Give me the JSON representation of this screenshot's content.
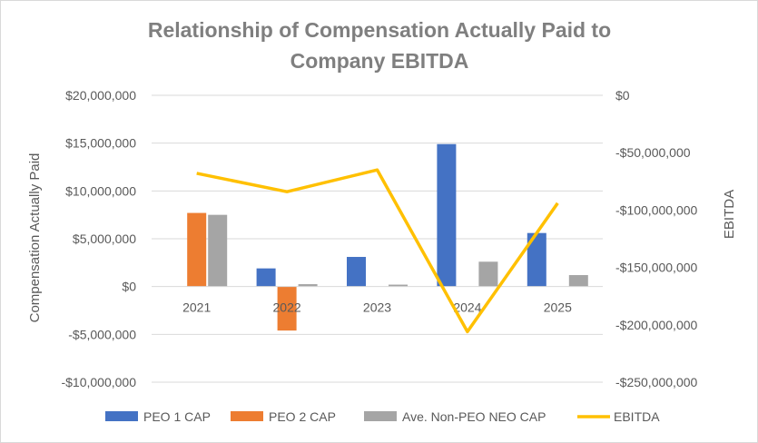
{
  "chart_data": {
    "type": "bar",
    "title_lines": [
      "Relationship of Compensation Actually Paid to",
      "Company EBITDA"
    ],
    "categories": [
      "2021",
      "2022",
      "2023",
      "2024",
      "2025"
    ],
    "ylabel_left": "Compensation Actually Paid",
    "ylabel_right": "EBITDA",
    "ylim_left": [
      -10000000,
      20000000
    ],
    "ylim_right": [
      -250000000,
      0
    ],
    "left_ticks": [
      {
        "value": 20000000,
        "label": "$20,000,000"
      },
      {
        "value": 15000000,
        "label": "$15,000,000"
      },
      {
        "value": 10000000,
        "label": "$10,000,000"
      },
      {
        "value": 5000000,
        "label": "$5,000,000"
      },
      {
        "value": 0,
        "label": "$0"
      },
      {
        "value": -5000000,
        "label": "-$5,000,000"
      },
      {
        "value": -10000000,
        "label": "-$10,000,000"
      }
    ],
    "right_ticks": [
      {
        "value": 0,
        "label": "$0"
      },
      {
        "value": -50000000,
        "label": "-$50,000,000"
      },
      {
        "value": -100000000,
        "label": "-$100,000,000"
      },
      {
        "value": -150000000,
        "label": "-$150,000,000"
      },
      {
        "value": -200000000,
        "label": "-$200,000,000"
      },
      {
        "value": -250000000,
        "label": "-$250,000,000"
      }
    ],
    "bar_series": [
      {
        "name": "PEO 1 CAP",
        "color": "#4472c4",
        "values": [
          null,
          1900000,
          3100000,
          14900000,
          5600000
        ]
      },
      {
        "name": "PEO 2 CAP",
        "color": "#ed7d31",
        "values": [
          7700000,
          -4600000,
          null,
          null,
          null
        ]
      },
      {
        "name": "Ave. Non-PEO NEO CAP",
        "color": "#a5a5a5",
        "values": [
          7500000,
          250000,
          200000,
          2600000,
          1200000
        ]
      }
    ],
    "line_series": {
      "name": "EBITDA",
      "color": "#ffc000",
      "axis": "right",
      "values": [
        -68000000,
        -84000000,
        -65000000,
        -206000000,
        -94000000
      ]
    },
    "gridlines": true,
    "legend_position": "bottom"
  }
}
